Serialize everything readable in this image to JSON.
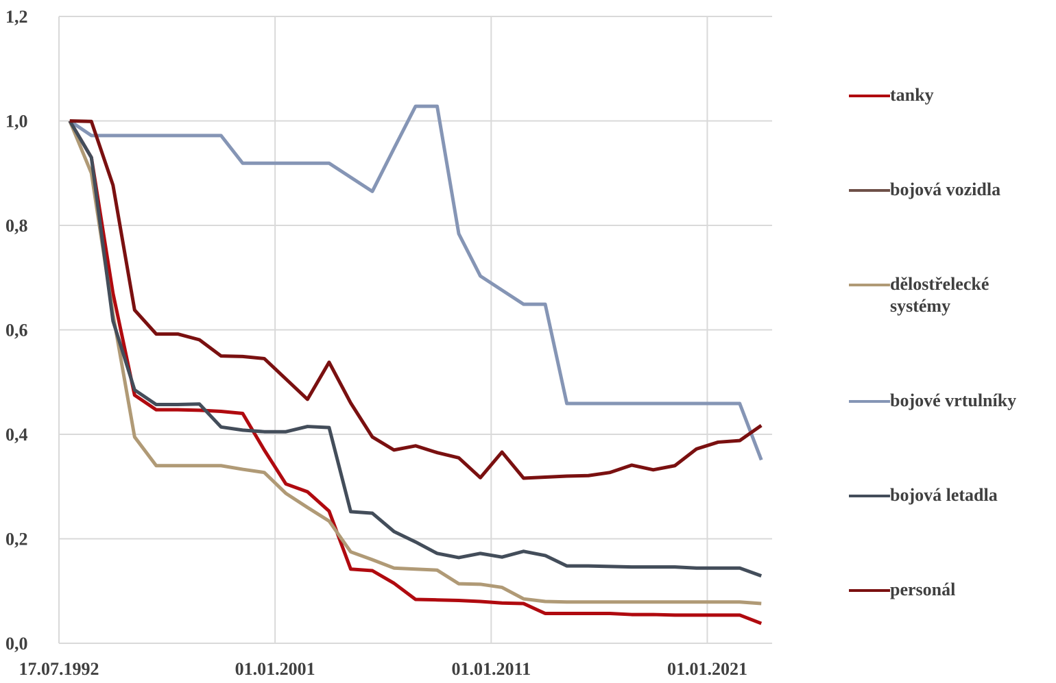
{
  "chart_data": {
    "type": "line",
    "categories": [
      "17.07.1992",
      null,
      null,
      null,
      null,
      null,
      null,
      null,
      null,
      null,
      "01.01.2001",
      null,
      null,
      null,
      null,
      null,
      null,
      null,
      null,
      null,
      "01.01.2011",
      null,
      null,
      null,
      null,
      null,
      null,
      null,
      null,
      null,
      "01.01.2021",
      null,
      null
    ],
    "series": [
      {
        "name": "tanky",
        "color": "#b00a0f",
        "values": [
          1.0,
          0.93,
          0.67,
          0.475,
          0.447,
          0.447,
          0.446,
          0.444,
          0.44,
          0.37,
          0.305,
          0.29,
          0.253,
          0.142,
          0.139,
          0.115,
          0.084,
          0.083,
          0.082,
          0.08,
          0.077,
          0.076,
          0.057,
          0.057,
          0.057,
          0.057,
          0.055,
          0.055,
          0.054,
          0.054,
          0.054,
          0.054,
          0.038
        ]
      },
      {
        "name": "bojová vozidla",
        "color": "#6e5048",
        "values": [
          null,
          null,
          null,
          null,
          null,
          null,
          null,
          null,
          null,
          null,
          null,
          null,
          null,
          null,
          null,
          null,
          null,
          null,
          null,
          null,
          null,
          null,
          null,
          null,
          null,
          null,
          null,
          null,
          null,
          null,
          null,
          null,
          null
        ]
      },
      {
        "name": "dělostřelecké systémy",
        "color": "#b09a76",
        "values": [
          1.0,
          0.9,
          0.63,
          0.395,
          0.34,
          0.34,
          0.34,
          0.34,
          0.333,
          0.327,
          0.287,
          0.26,
          0.234,
          0.175,
          0.16,
          0.144,
          0.142,
          0.14,
          0.114,
          0.113,
          0.107,
          0.085,
          0.08,
          0.079,
          0.079,
          0.079,
          0.079,
          0.079,
          0.079,
          0.079,
          0.079,
          0.079,
          0.076
        ]
      },
      {
        "name": "bojové vrtulníky",
        "color": "#8595b5",
        "values": [
          1.0,
          0.972,
          0.972,
          0.972,
          0.972,
          0.972,
          0.972,
          0.972,
          0.919,
          0.919,
          0.919,
          0.919,
          0.919,
          0.892,
          0.865,
          0.947,
          1.028,
          1.028,
          0.784,
          0.703,
          0.676,
          0.649,
          0.649,
          0.459,
          0.459,
          0.459,
          0.459,
          0.459,
          0.459,
          0.459,
          0.459,
          0.459,
          0.351
        ]
      },
      {
        "name": "bojová letadla",
        "color": "#434d5a",
        "values": [
          1.0,
          0.93,
          0.617,
          0.485,
          0.457,
          0.457,
          0.458,
          0.414,
          0.408,
          0.405,
          0.405,
          0.415,
          0.413,
          0.252,
          0.249,
          0.214,
          0.194,
          0.172,
          0.164,
          0.172,
          0.165,
          0.176,
          0.168,
          0.148,
          0.148,
          0.147,
          0.146,
          0.146,
          0.146,
          0.144,
          0.144,
          0.144,
          0.129
        ]
      },
      {
        "name": "personál",
        "color": "#7a1010",
        "values": [
          1.0,
          0.999,
          0.877,
          0.638,
          0.592,
          0.592,
          0.581,
          0.55,
          0.549,
          0.545,
          0.506,
          0.467,
          0.538,
          0.46,
          0.395,
          0.37,
          0.378,
          0.365,
          0.355,
          0.317,
          0.366,
          0.316,
          0.318,
          0.32,
          0.321,
          0.327,
          0.341,
          0.332,
          0.34,
          0.372,
          0.385,
          0.388,
          0.417
        ]
      }
    ],
    "ylim": [
      0,
      1.2
    ],
    "yticks": [
      {
        "value": 0,
        "label": "0,0"
      },
      {
        "value": 0.2,
        "label": "0,2"
      },
      {
        "value": 0.4,
        "label": "0,4"
      },
      {
        "value": 0.6,
        "label": "0,6"
      },
      {
        "value": 0.8,
        "label": "0,8"
      },
      {
        "value": 1,
        "label": "1,0"
      },
      {
        "value": 1.2,
        "label": "1,2"
      }
    ],
    "grid": true,
    "legend": "right"
  }
}
